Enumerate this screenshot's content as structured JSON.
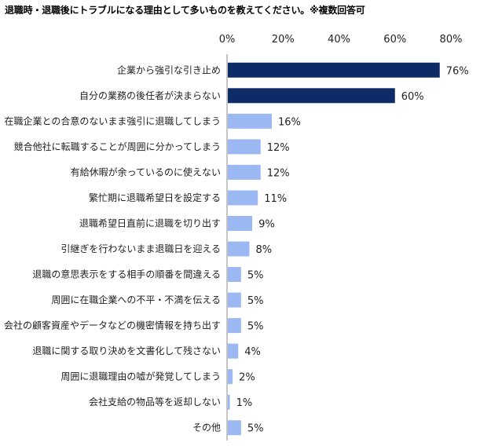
{
  "chart_data": {
    "type": "bar",
    "orientation": "horizontal",
    "title": "退職時・退職後にトラブルになる理由として多いものを教えてください。※複数回答可",
    "categories": [
      "企業から強引な引き止め",
      "自分の業務の後任者が決まらない",
      "在職企業との合意のないまま強引に退職してしまう",
      "競合他社に転職することが周囲に分かってしまう",
      "有給休暇が余っているのに使えない",
      "繁忙期に退職希望日を設定する",
      "退職希望日直前に退職を切り出す",
      "引継ぎを行わないまま退職日を迎える",
      "退職の意思表示をする相手の順番を間違える",
      "周囲に在職企業への不平・不満を伝える",
      "会社の顧客資産やデータなどの機密情報を持ち出す",
      "退職に関する取り決めを文書化して残さない",
      "周囲に退職理由の嘘が発覚してしまう",
      "会社支給の物品等を返却しない",
      "その他"
    ],
    "values": [
      76,
      60,
      16,
      12,
      12,
      11,
      9,
      8,
      5,
      5,
      5,
      4,
      2,
      1,
      5
    ],
    "value_labels": [
      "76%",
      "60%",
      "16%",
      "12%",
      "12%",
      "11%",
      "9%",
      "8%",
      "5%",
      "5%",
      "5%",
      "4%",
      "2%",
      "1%",
      "5%"
    ],
    "xlim": [
      0,
      80
    ],
    "x_ticks": [
      0,
      20,
      40,
      60,
      80
    ],
    "x_tick_labels": [
      "0%",
      "20%",
      "40%",
      "60%",
      "80%"
    ],
    "axis_position": "top",
    "grid": false,
    "colors": {
      "highlight": "#0d2b66",
      "normal": "#9bb8f2",
      "axis": "#888888"
    },
    "highlight_count": 2
  }
}
